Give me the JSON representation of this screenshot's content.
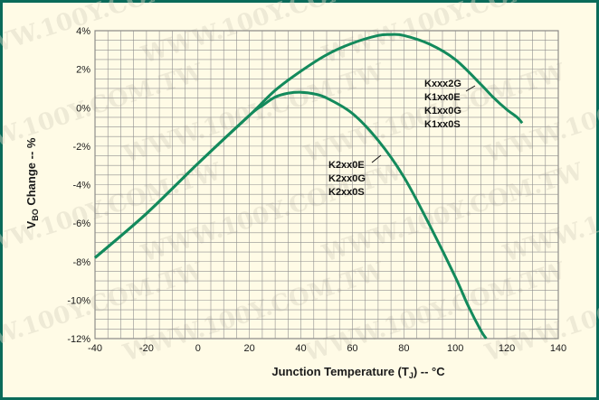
{
  "chart_data": {
    "type": "line",
    "xlabel_main": "Junction Temperature (T",
    "xlabel_sub": "J",
    "xlabel_tail": ") -- °C",
    "ylabel_main": "V",
    "ylabel_sub": "BO",
    "ylabel_tail": " Change -- %",
    "xlim": [
      -40,
      140
    ],
    "ylim": [
      -12,
      4
    ],
    "x_ticks": [
      -40,
      -20,
      0,
      20,
      40,
      60,
      80,
      100,
      120,
      140
    ],
    "y_ticks": [
      4,
      2,
      0,
      -2,
      -4,
      -6,
      -8,
      -10,
      -12
    ],
    "x_tick_labels": [
      "-40",
      "-20",
      "0",
      "20",
      "40",
      "60",
      "80",
      "100",
      "120",
      "140"
    ],
    "y_tick_labels": [
      "4%",
      "2%",
      "0%",
      "-2%",
      "-4%",
      "-6%",
      "-8%",
      "-10%",
      "-12%"
    ],
    "grid": true,
    "series": [
      {
        "labels": [
          "Kxxx2G",
          "K1xx0E",
          "K1xx0G",
          "K1xx0S"
        ],
        "color": "#138a5c",
        "x": [
          -40,
          -20,
          0,
          20,
          30,
          40,
          50,
          60,
          70,
          75,
          80,
          90,
          100,
          110,
          115,
          120,
          124,
          126
        ],
        "y": [
          -7.8,
          -5.5,
          -2.9,
          -0.4,
          0.9,
          1.9,
          2.75,
          3.35,
          3.75,
          3.8,
          3.75,
          3.3,
          2.5,
          1.2,
          0.5,
          -0.1,
          -0.5,
          -0.8
        ]
      },
      {
        "labels": [
          "K2xx0E",
          "K2xx0G",
          "K2xx0S"
        ],
        "color": "#138a5c",
        "x": [
          -40,
          -20,
          0,
          20,
          25,
          30,
          35,
          40,
          45,
          50,
          60,
          70,
          80,
          90,
          100,
          105,
          110,
          112
        ],
        "y": [
          -7.8,
          -5.5,
          -2.9,
          -0.4,
          0.1,
          0.55,
          0.75,
          0.8,
          0.72,
          0.5,
          -0.3,
          -1.7,
          -3.6,
          -6.1,
          -8.8,
          -10.3,
          -11.6,
          -12.0
        ]
      }
    ],
    "watermark": "WWW.100Y.COM.TW"
  }
}
